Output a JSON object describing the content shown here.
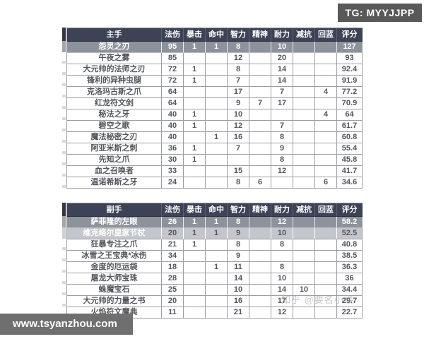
{
  "badges": {
    "tg": "TG: MYYJJPP",
    "site": "www.tsyanzhou.com"
  },
  "watermark": "知乎 @要名小楼",
  "colors": {
    "header_bg": "#3d4257",
    "highlight_dark_bg": "#8d929b",
    "highlight_light_bg": "#c3c6cc",
    "tg_badge_bg": "#595959",
    "site_badge_bg": "#6f6f6f"
  },
  "columns": [
    "法伤",
    "暴击",
    "命中",
    "智力",
    "精神",
    "耐力",
    "减抗",
    "回蓝",
    "评分"
  ],
  "tables": [
    {
      "title": "主手",
      "rows": [
        {
          "name": "怨灵之刃",
          "highlight": "dark",
          "values": [
            "95",
            "1",
            "1",
            "8",
            "",
            "10",
            "",
            "",
            "127"
          ]
        },
        {
          "name": "午夜之雾",
          "highlight": "none",
          "values": [
            "85",
            "",
            "",
            "12",
            "",
            "20",
            "",
            "",
            "93"
          ]
        },
        {
          "name": "大元帅的法师之刃",
          "highlight": "none",
          "values": [
            "72",
            "1",
            "",
            "8",
            "",
            "14",
            "",
            "",
            "92.4"
          ]
        },
        {
          "name": "锋利的异种虫腿",
          "highlight": "none",
          "values": [
            "72",
            "1",
            "",
            "7",
            "",
            "14",
            "",
            "",
            "91.9"
          ]
        },
        {
          "name": "克洛玛古斯之爪",
          "highlight": "none",
          "values": [
            "64",
            "",
            "",
            "17",
            "",
            "7",
            "",
            "4",
            "77.2"
          ]
        },
        {
          "name": "红龙符文剑",
          "highlight": "none",
          "values": [
            "64",
            "",
            "",
            "9",
            "7",
            "17",
            "",
            "",
            "70.9"
          ]
        },
        {
          "name": "秘法之牙",
          "highlight": "none",
          "values": [
            "40",
            "1",
            "",
            "10",
            "",
            "",
            "",
            "4",
            "64"
          ]
        },
        {
          "name": "碧空之歌",
          "highlight": "none",
          "values": [
            "40",
            "1",
            "",
            "12",
            "",
            "7",
            "",
            "",
            "61.7"
          ]
        },
        {
          "name": "魔法秘密之刃",
          "highlight": "none",
          "values": [
            "40",
            "",
            "1",
            "16",
            "",
            "8",
            "",
            "",
            "60.8"
          ]
        },
        {
          "name": "阿亚米斯之刺",
          "highlight": "none",
          "values": [
            "36",
            "1",
            "",
            "7",
            "",
            "9",
            "",
            "",
            "55.4"
          ]
        },
        {
          "name": "先知之爪",
          "highlight": "none",
          "values": [
            "30",
            "1",
            "",
            "",
            "",
            "8",
            "",
            "",
            "45.8"
          ]
        },
        {
          "name": "血之召唤者",
          "highlight": "none",
          "values": [
            "33",
            "",
            "",
            "15",
            "",
            "12",
            "",
            "",
            "41.7"
          ]
        },
        {
          "name": "温诺希斯之牙",
          "highlight": "none",
          "values": [
            "24",
            "",
            "",
            "8",
            "6",
            "",
            "",
            "6",
            "34.6"
          ]
        }
      ]
    },
    {
      "title": "副手",
      "rows": [
        {
          "name": "萨菲隆的左眼",
          "highlight": "dark",
          "values": [
            "26",
            "1",
            "1",
            "8",
            "",
            "12",
            "",
            "",
            "58.2"
          ]
        },
        {
          "name": "维克络尔皇家节杖",
          "highlight": "light",
          "values": [
            "20",
            "1",
            "1",
            "9",
            "",
            "10",
            "",
            "",
            "52.5"
          ]
        },
        {
          "name": "狂暴专注之爪",
          "highlight": "none",
          "values": [
            "21",
            "1",
            "",
            "8",
            "",
            "8",
            "",
            "",
            "40.8"
          ]
        },
        {
          "name": "冰雪之王宝典*冰伤",
          "highlight": "none",
          "values": [
            "34",
            "",
            "",
            "9",
            "",
            "",
            "",
            "",
            "38.5"
          ]
        },
        {
          "name": "金度的厄运袋",
          "highlight": "none",
          "values": [
            "18",
            "",
            "1",
            "11",
            "",
            "8",
            "",
            "",
            "36.3"
          ]
        },
        {
          "name": "屠龙大师宝珠",
          "highlight": "none",
          "values": [
            "28",
            "",
            "",
            "14",
            "",
            "10",
            "",
            "",
            "36"
          ]
        },
        {
          "name": "蛛魔宝石",
          "highlight": "none",
          "values": [
            "25",
            "",
            "",
            "10",
            "",
            "14",
            "10",
            "",
            "34.4"
          ]
        },
        {
          "name": "大元帅的力量之书",
          "highlight": "none",
          "values": [
            "20",
            "",
            "",
            "16",
            "",
            "17",
            "",
            "",
            "29.7"
          ]
        },
        {
          "name": "火焰符文魔典",
          "highlight": "none",
          "values": [
            "11",
            "",
            "",
            "21",
            "",
            "12",
            "",
            "",
            "22.7"
          ]
        }
      ]
    }
  ]
}
